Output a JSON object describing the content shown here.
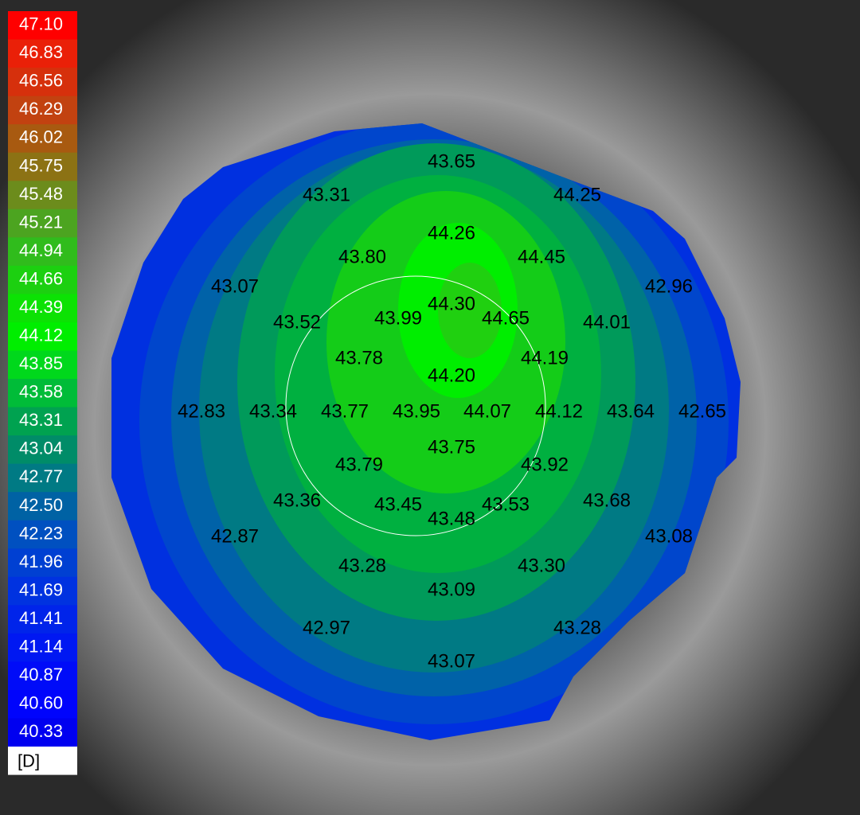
{
  "legend": {
    "entries": [
      {
        "label": "47.10",
        "color": "#ff0000"
      },
      {
        "label": "46.83",
        "color": "#ea2008"
      },
      {
        "label": "46.56",
        "color": "#d6300c"
      },
      {
        "label": "46.29",
        "color": "#c24210"
      },
      {
        "label": "46.02",
        "color": "#a85a10"
      },
      {
        "label": "45.75",
        "color": "#8c7214"
      },
      {
        "label": "45.48",
        "color": "#6c8c1c"
      },
      {
        "label": "45.21",
        "color": "#4ca420"
      },
      {
        "label": "44.94",
        "color": "#30bc1c"
      },
      {
        "label": "44.66",
        "color": "#1cd010"
      },
      {
        "label": "44.39",
        "color": "#0ce204"
      },
      {
        "label": "44.12",
        "color": "#00ee00"
      },
      {
        "label": "43.85",
        "color": "#00d81c"
      },
      {
        "label": "43.58",
        "color": "#00bc38"
      },
      {
        "label": "43.31",
        "color": "#00a250"
      },
      {
        "label": "43.04",
        "color": "#008c68"
      },
      {
        "label": "42.77",
        "color": "#007a84"
      },
      {
        "label": "42.50",
        "color": "#0062a4"
      },
      {
        "label": "42.23",
        "color": "#0050c0"
      },
      {
        "label": "41.96",
        "color": "#0040d2"
      },
      {
        "label": "41.69",
        "color": "#0032e0"
      },
      {
        "label": "41.41",
        "color": "#0024ea"
      },
      {
        "label": "41.14",
        "color": "#0018f2"
      },
      {
        "label": "40.87",
        "color": "#000cf8"
      },
      {
        "label": "40.60",
        "color": "#0004fc"
      },
      {
        "label": "40.33",
        "color": "#0000f0"
      }
    ],
    "unit": "[D]"
  },
  "points": [
    "43.65",
    "43.31",
    "44.25",
    "44.26",
    "43.80",
    "44.45",
    "43.07",
    "42.96",
    "44.30",
    "43.99",
    "44.65",
    "43.52",
    "44.01",
    "43.78",
    "44.19",
    "44.20",
    "42.83",
    "43.34",
    "43.77",
    "43.95",
    "44.07",
    "44.12",
    "43.64",
    "42.65",
    "43.75",
    "43.79",
    "43.92",
    "43.36",
    "43.68",
    "43.45",
    "43.53",
    "43.48",
    "42.87",
    "43.08",
    "43.28",
    "43.30",
    "43.09",
    "42.97",
    "43.28",
    "43.07"
  ]
}
